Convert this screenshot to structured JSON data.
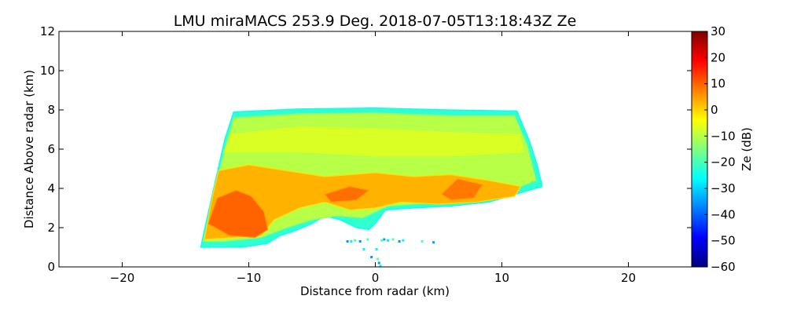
{
  "chart_data": {
    "type": "heatmap",
    "title": "LMU miraMACS 253.9 Deg. 2018-07-05T13:18:43Z  Ze",
    "xlabel": "Distance from radar (km)",
    "ylabel": "Distance Above radar  (km)",
    "xlim": [
      -25,
      25
    ],
    "ylim": [
      0,
      12
    ],
    "xticks": [
      -20,
      -10,
      0,
      10,
      20
    ],
    "yticks": [
      0,
      2,
      4,
      6,
      8,
      10,
      12
    ],
    "grid": false,
    "colorbar": {
      "label": "Ze (dB)",
      "range": [
        -60,
        30
      ],
      "ticks": [
        30,
        20,
        10,
        0,
        -10,
        -20,
        -30,
        -40,
        -50,
        -60
      ],
      "colormap": [
        "#00007f",
        "#0000ff",
        "#007fff",
        "#00ffff",
        "#7fff7f",
        "#ffff00",
        "#ff7f00",
        "#ff0000",
        "#7f0000"
      ]
    },
    "echo_regions": [
      {
        "name": "scan-sector-envelope",
        "ze_db": -22,
        "outline": [
          [
            -13.8,
            1.0
          ],
          [
            -13.3,
            2.5
          ],
          [
            -12.6,
            4.5
          ],
          [
            -11.9,
            6.5
          ],
          [
            -11.2,
            7.9
          ],
          [
            -6,
            8.05
          ],
          [
            0,
            8.1
          ],
          [
            6,
            8.0
          ],
          [
            11.2,
            7.95
          ],
          [
            12.2,
            6.4
          ],
          [
            12.8,
            5.2
          ],
          [
            13.2,
            4.1
          ],
          [
            9,
            3.3
          ],
          [
            6,
            3.1
          ],
          [
            3,
            3.0
          ],
          [
            0.8,
            2.9
          ],
          [
            0,
            2.2
          ],
          [
            -0.5,
            1.9
          ],
          [
            -1.5,
            2.0
          ],
          [
            -2.8,
            2.4
          ],
          [
            -4,
            2.6
          ],
          [
            -5,
            2.2
          ],
          [
            -6.5,
            1.8
          ],
          [
            -7.5,
            1.6
          ],
          [
            -8.5,
            1.2
          ],
          [
            -10.5,
            1.0
          ],
          [
            -12,
            1.0
          ]
        ]
      },
      {
        "name": "cloud-interior",
        "ze_db": -10,
        "outline": [
          [
            -13.6,
            1.3
          ],
          [
            -13.0,
            3.0
          ],
          [
            -12.2,
            5.2
          ],
          [
            -11.2,
            7.6
          ],
          [
            -6,
            7.8
          ],
          [
            0,
            7.85
          ],
          [
            6,
            7.7
          ],
          [
            11.0,
            7.7
          ],
          [
            12.0,
            6.2
          ],
          [
            12.7,
            4.4
          ],
          [
            9,
            3.5
          ],
          [
            5,
            3.3
          ],
          [
            1,
            3.1
          ],
          [
            -1,
            2.5
          ],
          [
            -3,
            2.6
          ],
          [
            -5,
            2.4
          ],
          [
            -7,
            2.0
          ],
          [
            -9,
            1.5
          ],
          [
            -12,
            1.3
          ]
        ]
      },
      {
        "name": "upper-layer",
        "ze_db": -7,
        "outline": [
          [
            -11.5,
            6.8
          ],
          [
            -6,
            7.2
          ],
          [
            0,
            7.1
          ],
          [
            6,
            6.9
          ],
          [
            11.5,
            6.8
          ],
          [
            11.8,
            5.8
          ],
          [
            6,
            5.6
          ],
          [
            0,
            5.6
          ],
          [
            -6,
            5.8
          ],
          [
            -12,
            5.8
          ]
        ]
      },
      {
        "name": "enhanced-band",
        "ze_db": 3,
        "outline": [
          [
            -13.5,
            1.4
          ],
          [
            -13.0,
            3.2
          ],
          [
            -12.4,
            4.9
          ],
          [
            -10,
            5.2
          ],
          [
            -7,
            4.9
          ],
          [
            -4,
            4.6
          ],
          [
            0,
            4.8
          ],
          [
            3,
            4.6
          ],
          [
            6,
            4.7
          ],
          [
            9,
            4.4
          ],
          [
            11.5,
            4.1
          ],
          [
            11,
            3.6
          ],
          [
            8,
            3.3
          ],
          [
            5,
            3.2
          ],
          [
            2,
            3.3
          ],
          [
            0,
            3.0
          ],
          [
            -2,
            2.9
          ],
          [
            -4,
            3.3
          ],
          [
            -6,
            3.0
          ],
          [
            -8,
            2.4
          ],
          [
            -9,
            1.6
          ],
          [
            -11,
            1.5
          ]
        ]
      },
      {
        "name": "core-1",
        "ze_db": 10,
        "outline": [
          [
            -13.2,
            2.2
          ],
          [
            -12.5,
            3.5
          ],
          [
            -11,
            3.9
          ],
          [
            -9.8,
            3.6
          ],
          [
            -8.8,
            2.8
          ],
          [
            -8.5,
            1.9
          ],
          [
            -9.5,
            1.5
          ],
          [
            -11.5,
            1.6
          ]
        ]
      },
      {
        "name": "core-2",
        "ze_db": 9,
        "outline": [
          [
            -4,
            3.7
          ],
          [
            -2,
            4.1
          ],
          [
            -0.5,
            3.9
          ],
          [
            -1.5,
            3.4
          ],
          [
            -3.5,
            3.3
          ]
        ]
      },
      {
        "name": "core-3",
        "ze_db": 8,
        "outline": [
          [
            5.2,
            3.7
          ],
          [
            6.5,
            4.5
          ],
          [
            8.5,
            4.2
          ],
          [
            7.8,
            3.5
          ],
          [
            6,
            3.4
          ]
        ]
      }
    ],
    "sparse_echoes": [
      {
        "name": "near-ground-clutter",
        "ze_db": -35,
        "points": [
          [
            -2.2,
            1.3
          ],
          [
            -1.9,
            1.3
          ],
          [
            -1.6,
            1.35
          ],
          [
            -1.2,
            1.3
          ],
          [
            -0.9,
            0.9
          ],
          [
            -0.6,
            1.4
          ],
          [
            -0.3,
            0.5
          ],
          [
            0.1,
            0.9
          ],
          [
            0.2,
            0.4
          ],
          [
            0.3,
            0.2
          ],
          [
            0.4,
            0.05
          ],
          [
            0.5,
            1.35
          ],
          [
            0.7,
            1.4
          ],
          [
            1.0,
            1.35
          ],
          [
            1.4,
            1.4
          ],
          [
            1.9,
            1.3
          ],
          [
            2.2,
            1.35
          ],
          [
            3.7,
            1.3
          ],
          [
            4.6,
            1.25
          ]
        ]
      }
    ]
  }
}
